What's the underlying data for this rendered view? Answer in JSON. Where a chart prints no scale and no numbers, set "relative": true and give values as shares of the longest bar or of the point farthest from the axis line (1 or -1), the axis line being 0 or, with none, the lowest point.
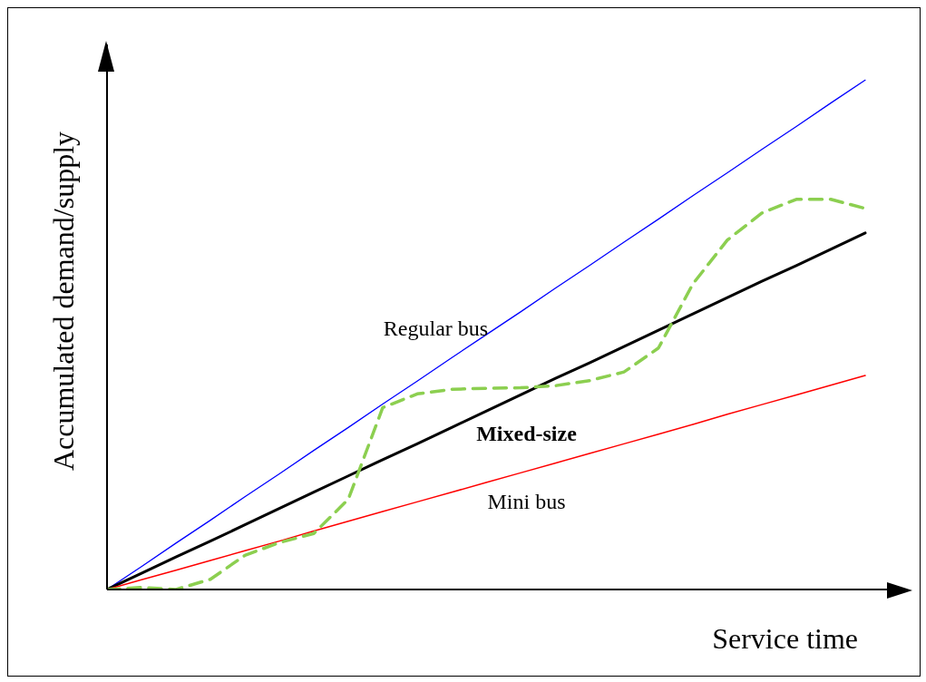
{
  "chart_data": {
    "type": "line",
    "relative": true,
    "xlabel": "Service time",
    "ylabel": "Accumulated demand/supply",
    "categories": [
      null,
      null,
      null,
      null,
      null,
      null,
      null,
      null,
      null,
      null,
      null,
      null,
      null,
      null,
      null,
      null,
      null,
      null,
      null,
      null,
      null,
      null,
      null
    ],
    "series": [
      {
        "name": "Regular bus",
        "color": "#0000ff",
        "values": [
          0,
          0.045,
          0.091,
          0.136,
          0.182,
          0.227,
          0.273,
          0.318,
          0.364,
          0.409,
          0.455,
          0.5,
          0.545,
          0.591,
          0.636,
          0.682,
          0.727,
          0.773,
          0.818,
          0.864,
          0.909,
          0.955,
          1
        ]
      },
      {
        "name": "Mixed-size",
        "color": "#000000",
        "values": [
          0,
          0.032,
          0.064,
          0.095,
          0.127,
          0.159,
          0.191,
          0.223,
          0.255,
          0.286,
          0.318,
          0.35,
          0.382,
          0.414,
          0.445,
          0.477,
          0.509,
          0.541,
          0.573,
          0.605,
          0.636,
          0.668,
          0.7
        ]
      },
      {
        "name": "Mini bus",
        "color": "#ff0000",
        "values": [
          0,
          0.019,
          0.038,
          0.057,
          0.076,
          0.095,
          0.115,
          0.134,
          0.153,
          0.172,
          0.191,
          0.21,
          0.229,
          0.248,
          0.267,
          0.286,
          0.305,
          0.324,
          0.344,
          0.363,
          0.382,
          0.401,
          0.42
        ]
      },
      {
        "color": "#8ccf50",
        "line_style": "dashed",
        "values": [
          0,
          0.004,
          0,
          0.02,
          0.067,
          0.092,
          0.11,
          0.177,
          0.357,
          0.384,
          0.393,
          0.395,
          0.396,
          0.4,
          0.41,
          0.427,
          0.474,
          0.6,
          0.686,
          0.739,
          0.766,
          0.766,
          0.748
        ]
      }
    ],
    "grid": false,
    "legend": false,
    "marker": "none"
  }
}
